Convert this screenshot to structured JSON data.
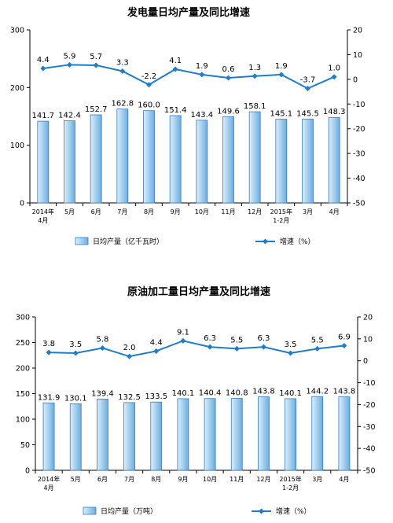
{
  "colors": {
    "bar_fill_light": "#dceefb",
    "bar_fill_dark": "#6aaee0",
    "bar_stroke": "#3a7cc0",
    "line": "#1f7cc8",
    "text": "#000000"
  },
  "chart_data": [
    {
      "type": "bar+line",
      "title": "发电量日均产量及同比增速",
      "categories": [
        "2014年\n4月",
        "5月",
        "6月",
        "7月",
        "8月",
        "9月",
        "10月",
        "11月",
        "12月",
        "2015年\n1-2月",
        "3月",
        "4月"
      ],
      "series": [
        {
          "name": "日均产量（亿千瓦时）",
          "type": "bar",
          "axis": "left",
          "values": [
            141.7,
            142.4,
            152.7,
            162.8,
            160.0,
            151.4,
            143.4,
            149.6,
            158.1,
            145.1,
            145.5,
            148.3
          ]
        },
        {
          "name": "增速（%）",
          "type": "line",
          "axis": "right",
          "values": [
            4.4,
            5.9,
            5.7,
            3.3,
            -2.2,
            4.1,
            1.9,
            0.6,
            1.3,
            1.9,
            -3.7,
            1.0
          ]
        }
      ],
      "y_left": {
        "min": 0,
        "max": 300,
        "ticks": [
          0,
          100,
          200,
          300
        ]
      },
      "y_right": {
        "min": -50,
        "max": 20,
        "ticks": [
          20,
          10,
          0,
          -10,
          -20,
          -30,
          -40,
          -50
        ]
      },
      "legend_position": "bottom"
    },
    {
      "type": "bar+line",
      "title": "原油加工量日均产量及同比增速",
      "categories": [
        "2014年\n4月",
        "5月",
        "6月",
        "7月",
        "8月",
        "9月",
        "10月",
        "11月",
        "12月",
        "2015年\n1-2月",
        "3月",
        "4月"
      ],
      "series": [
        {
          "name": "日均产量（万吨）",
          "type": "bar",
          "axis": "left",
          "values": [
            131.9,
            130.1,
            139.4,
            132.5,
            133.5,
            140.1,
            140.4,
            140.8,
            143.8,
            140.1,
            144.2,
            143.8
          ]
        },
        {
          "name": "增速（%）",
          "type": "line",
          "axis": "right",
          "values": [
            3.8,
            3.5,
            5.8,
            2.0,
            4.4,
            9.1,
            6.3,
            5.5,
            6.3,
            3.5,
            5.5,
            6.9
          ]
        }
      ],
      "y_left": {
        "min": 0,
        "max": 300,
        "ticks": [
          0,
          50,
          100,
          150,
          200,
          250,
          300
        ]
      },
      "y_right": {
        "min": -50,
        "max": 20,
        "ticks": [
          20,
          10,
          0,
          -10,
          -20,
          -30,
          -40,
          -50
        ]
      },
      "legend_position": "bottom"
    }
  ]
}
